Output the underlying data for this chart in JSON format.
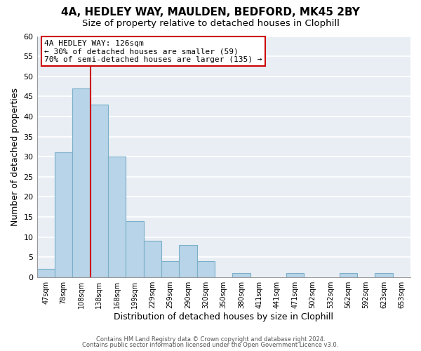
{
  "title": "4A, HEDLEY WAY, MAULDEN, BEDFORD, MK45 2BY",
  "subtitle": "Size of property relative to detached houses in Clophill",
  "xlabel": "Distribution of detached houses by size in Clophill",
  "ylabel": "Number of detached properties",
  "bin_labels": [
    "47sqm",
    "78sqm",
    "108sqm",
    "138sqm",
    "168sqm",
    "199sqm",
    "229sqm",
    "259sqm",
    "290sqm",
    "320sqm",
    "350sqm",
    "380sqm",
    "411sqm",
    "441sqm",
    "471sqm",
    "502sqm",
    "532sqm",
    "562sqm",
    "592sqm",
    "623sqm",
    "653sqm"
  ],
  "bar_values": [
    2,
    31,
    47,
    43,
    30,
    14,
    9,
    4,
    8,
    4,
    0,
    1,
    0,
    0,
    1,
    0,
    0,
    1,
    0,
    1,
    0
  ],
  "bar_color": "#b8d4e8",
  "bar_edge_color": "#7aafc8",
  "vline_x": 2.5,
  "vline_color": "#cc0000",
  "ylim": [
    0,
    60
  ],
  "yticks": [
    0,
    5,
    10,
    15,
    20,
    25,
    30,
    35,
    40,
    45,
    50,
    55,
    60
  ],
  "annotation_title": "4A HEDLEY WAY: 126sqm",
  "annotation_line1": "← 30% of detached houses are smaller (59)",
  "annotation_line2": "70% of semi-detached houses are larger (135) →",
  "annotation_box_color": "#ffffff",
  "annotation_box_edge": "#cc0000",
  "footer1": "Contains HM Land Registry data © Crown copyright and database right 2024.",
  "footer2": "Contains public sector information licensed under the Open Government Licence v3.0.",
  "plot_bg_color": "#e8eef4",
  "fig_bg_color": "#ffffff",
  "grid_color": "#ffffff",
  "title_fontsize": 11,
  "subtitle_fontsize": 9.5
}
